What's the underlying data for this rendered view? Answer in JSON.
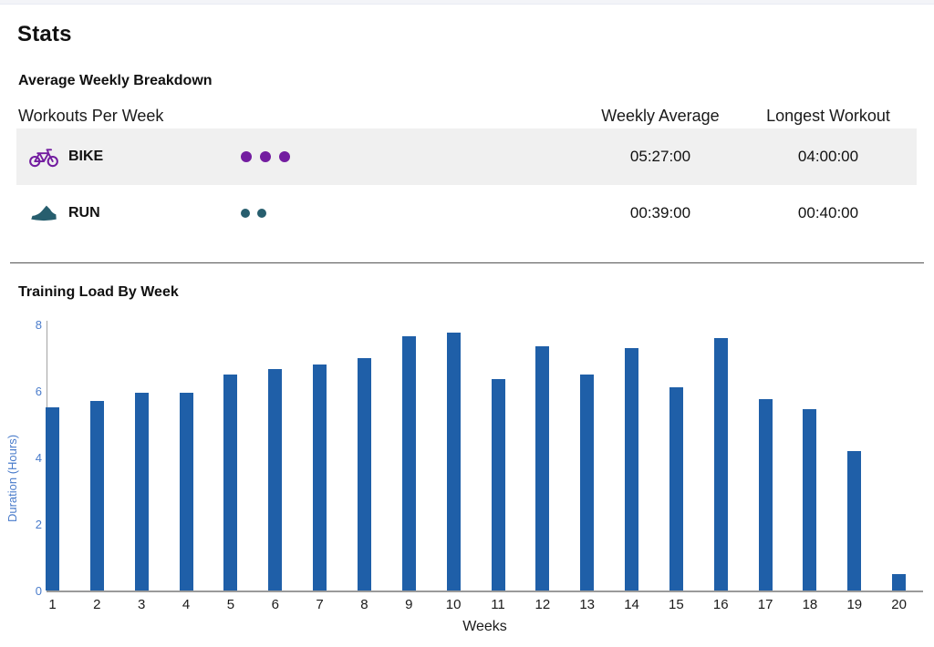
{
  "page": {
    "title": "Stats"
  },
  "breakdown": {
    "heading": "Average Weekly Breakdown",
    "table": {
      "col_workouts": "Workouts Per Week",
      "col_weekly_avg": "Weekly Average",
      "col_longest": "Longest Workout",
      "rows": [
        {
          "sport": "BIKE",
          "icon": "bike-icon",
          "dot_count": 3,
          "dot_size": 12,
          "dot_gap": 9,
          "color": "#731da0",
          "weekly_average": "05:27:00",
          "longest_workout": "04:00:00"
        },
        {
          "sport": "RUN",
          "icon": "run-shoe-icon",
          "dot_count": 2,
          "dot_size": 10,
          "dot_gap": 8,
          "color": "#275e6e",
          "weekly_average": "00:39:00",
          "longest_workout": "00:40:00"
        }
      ]
    }
  },
  "training_load": {
    "heading": "Training Load By Week"
  },
  "chart_data": {
    "type": "bar",
    "title": "Training Load By Week",
    "xlabel": "Weeks",
    "ylabel": "Duration (Hours)",
    "categories": [
      "1",
      "2",
      "3",
      "4",
      "5",
      "6",
      "7",
      "8",
      "9",
      "10",
      "11",
      "12",
      "13",
      "14",
      "15",
      "16",
      "17",
      "18",
      "19",
      "20"
    ],
    "values": [
      5.5,
      5.7,
      5.95,
      5.95,
      6.5,
      6.65,
      6.8,
      7.0,
      7.65,
      7.75,
      6.35,
      7.35,
      6.5,
      7.3,
      6.1,
      7.6,
      5.75,
      5.45,
      4.2,
      0.5
    ],
    "ylim": [
      0,
      8
    ],
    "yticks": [
      0,
      2,
      4,
      6,
      8
    ],
    "grid": false,
    "legend": null,
    "bar_color": "#1f5fa8",
    "axis_value_color": "#4a7ccb"
  }
}
